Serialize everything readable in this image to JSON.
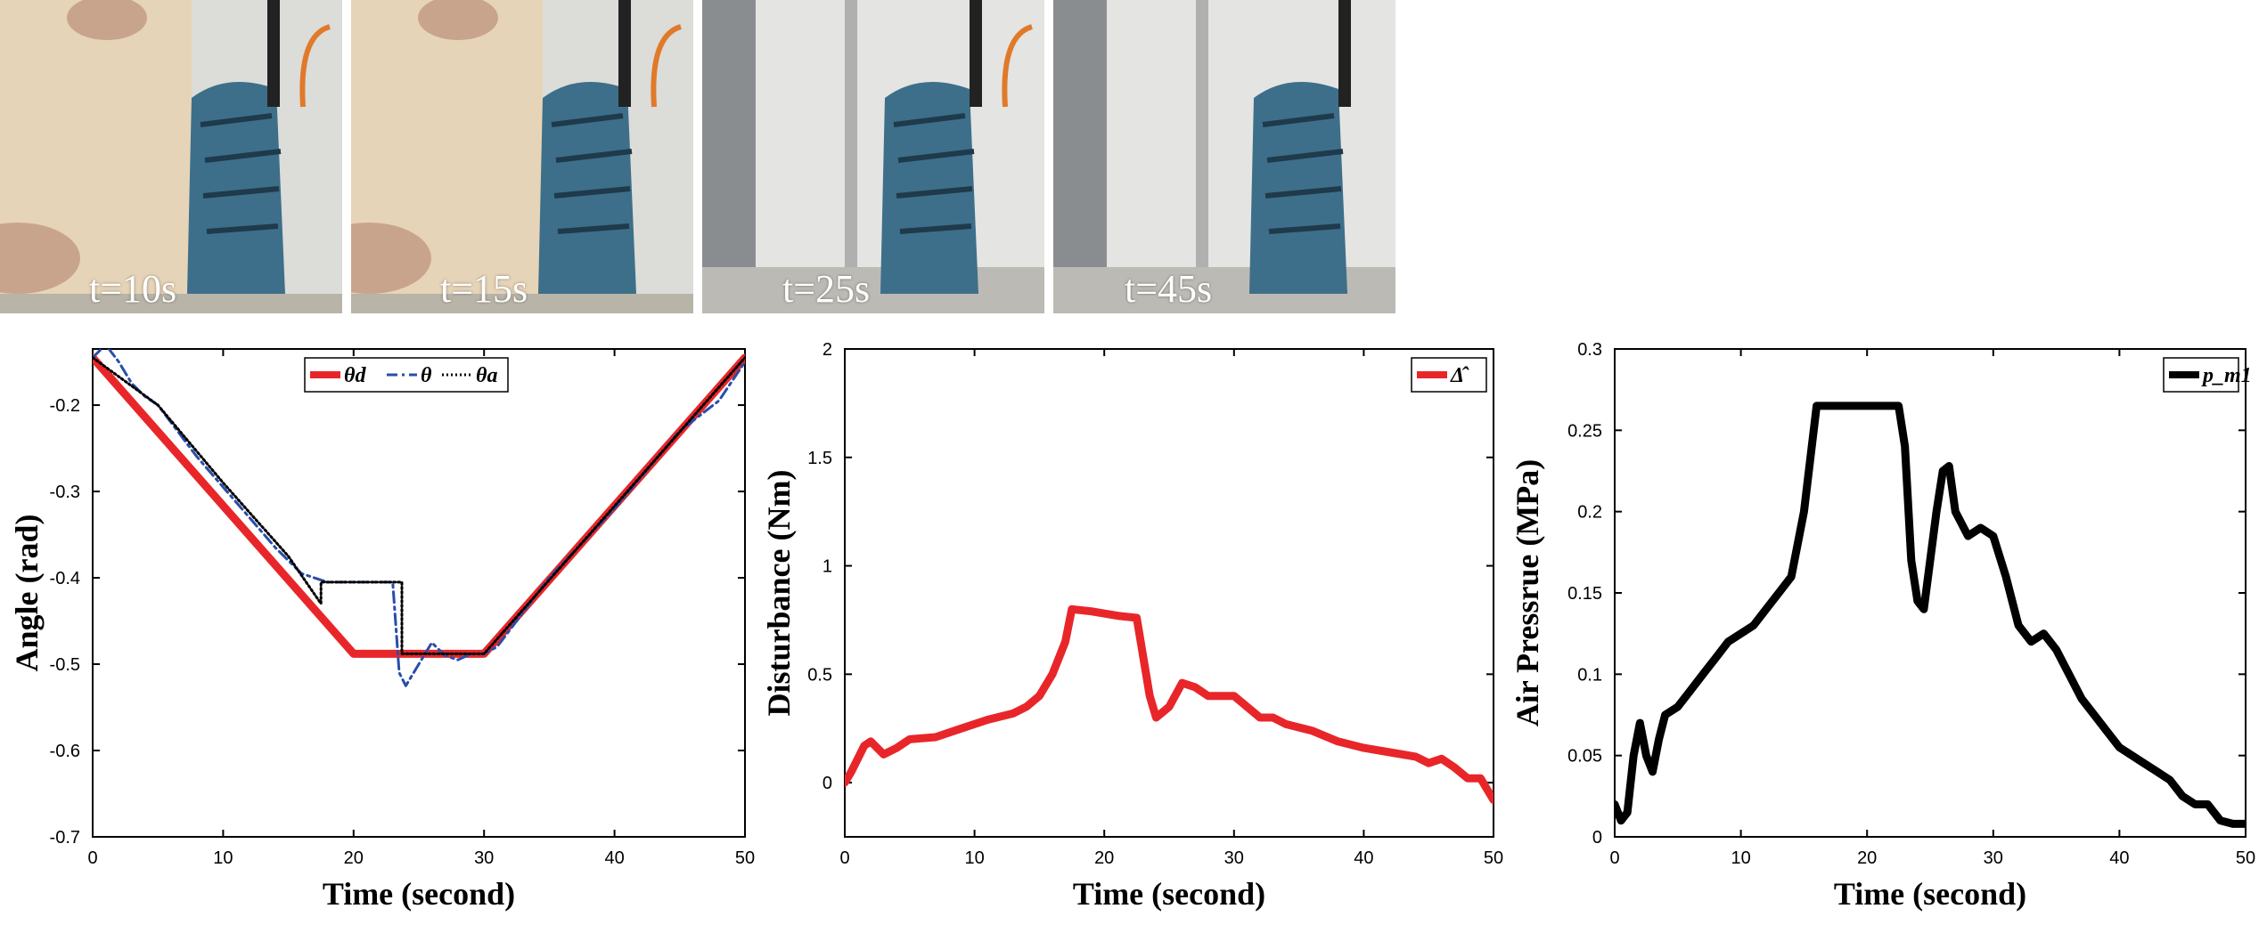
{
  "photos": [
    {
      "caption": "t=10s",
      "board": true
    },
    {
      "caption": "t=15s",
      "board": true
    },
    {
      "caption": "t=25s",
      "board": false
    },
    {
      "caption": "t=45s",
      "board": false
    }
  ],
  "colors": {
    "red": "#e8262a",
    "blue": "#2a4da8",
    "black": "#000000"
  },
  "chart_data": [
    {
      "type": "line",
      "xlabel": "Time (second)",
      "ylabel": "Angle (rad)",
      "xlim": [
        0,
        50
      ],
      "ylim": [
        -0.7,
        -0.135
      ],
      "xticks": [
        "0",
        "10",
        "20",
        "30",
        "40",
        "50"
      ],
      "yticks": [
        "-0.2",
        "-0.3",
        "-0.4",
        "-0.5",
        "-0.6",
        "-0.7"
      ],
      "legend": "top-center",
      "series": [
        {
          "name": "θd",
          "style": "solid",
          "x": [
            0,
            20,
            30,
            50
          ],
          "y": [
            -0.145,
            -0.488,
            -0.488,
            -0.145
          ]
        },
        {
          "name": "θ",
          "style": "dashdot",
          "x": [
            0,
            1,
            2,
            3,
            4,
            5,
            8,
            12,
            14,
            15,
            16,
            18,
            20,
            22,
            23,
            23.5,
            24,
            25,
            26,
            27,
            28,
            29,
            30,
            31,
            35,
            40,
            45,
            48,
            50
          ],
          "y": [
            -0.145,
            -0.13,
            -0.15,
            -0.175,
            -0.19,
            -0.2,
            -0.26,
            -0.33,
            -0.365,
            -0.38,
            -0.395,
            -0.405,
            -0.405,
            -0.405,
            -0.405,
            -0.51,
            -0.525,
            -0.5,
            -0.475,
            -0.49,
            -0.495,
            -0.488,
            -0.488,
            -0.48,
            -0.4,
            -0.32,
            -0.23,
            -0.195,
            -0.15
          ]
        },
        {
          "name": "θa",
          "style": "dotted",
          "x": [
            0,
            5,
            10,
            15,
            17.5,
            17.5,
            23.7,
            23.7,
            30,
            40,
            50
          ],
          "y": [
            -0.145,
            -0.2,
            -0.29,
            -0.375,
            -0.43,
            -0.405,
            -0.405,
            -0.488,
            -0.488,
            -0.317,
            -0.145
          ]
        }
      ]
    },
    {
      "type": "line",
      "xlabel": "Time (second)",
      "ylabel": "Disturbance (Nm)",
      "xlim": [
        0,
        50
      ],
      "ylim": [
        -0.25,
        2
      ],
      "xticks": [
        "0",
        "10",
        "20",
        "30",
        "40",
        "50"
      ],
      "yticks": [
        "0",
        "0.5",
        "1",
        "1.5",
        "2"
      ],
      "legend": "top-right",
      "series": [
        {
          "name": "Δ̂",
          "style": "solid",
          "x": [
            0,
            0.5,
            1.5,
            2,
            3,
            4,
            5,
            7,
            9,
            11,
            13,
            14,
            15,
            16,
            17,
            17.5,
            19,
            21,
            22.5,
            23.5,
            24,
            25,
            26,
            27,
            28,
            30,
            32,
            33,
            34,
            36,
            38,
            40,
            42,
            44,
            45,
            46,
            47,
            48,
            49,
            50
          ],
          "y": [
            0,
            0.05,
            0.17,
            0.19,
            0.13,
            0.16,
            0.2,
            0.21,
            0.25,
            0.29,
            0.32,
            0.35,
            0.4,
            0.5,
            0.65,
            0.8,
            0.79,
            0.77,
            0.76,
            0.4,
            0.3,
            0.35,
            0.46,
            0.44,
            0.4,
            0.4,
            0.3,
            0.3,
            0.27,
            0.24,
            0.19,
            0.16,
            0.14,
            0.12,
            0.09,
            0.11,
            0.07,
            0.02,
            0.02,
            -0.08
          ]
        }
      ]
    },
    {
      "type": "line",
      "xlabel": "Time (second)",
      "ylabel": "Air Pressrue (MPa)",
      "xlim": [
        0,
        50
      ],
      "ylim": [
        0,
        0.3
      ],
      "xticks": [
        "0",
        "10",
        "20",
        "30",
        "40",
        "50"
      ],
      "yticks": [
        "0",
        "0.05",
        "0.1",
        "0.15",
        "0.2",
        "0.25",
        "0.3"
      ],
      "legend": "top-right",
      "series": [
        {
          "name": "p_m1",
          "style": "solid",
          "x": [
            0,
            0.5,
            1,
            1.5,
            2,
            2.5,
            3,
            3.5,
            4,
            5,
            6,
            7,
            8,
            9,
            10,
            11,
            12,
            13,
            14,
            15,
            16,
            17,
            18,
            19,
            20,
            21,
            22,
            22.5,
            23,
            23.5,
            24,
            24.5,
            25,
            25.5,
            26,
            26.5,
            27,
            28,
            29,
            30,
            31,
            32,
            33,
            34,
            35,
            36,
            37,
            38,
            39,
            40,
            41,
            42,
            43,
            44,
            45,
            46,
            47,
            48,
            49,
            50
          ],
          "y": [
            0.02,
            0.01,
            0.015,
            0.05,
            0.07,
            0.05,
            0.04,
            0.06,
            0.075,
            0.08,
            0.09,
            0.1,
            0.11,
            0.12,
            0.125,
            0.13,
            0.14,
            0.15,
            0.16,
            0.2,
            0.265,
            0.265,
            0.265,
            0.265,
            0.265,
            0.265,
            0.265,
            0.265,
            0.24,
            0.17,
            0.145,
            0.14,
            0.17,
            0.2,
            0.225,
            0.228,
            0.2,
            0.185,
            0.19,
            0.185,
            0.16,
            0.13,
            0.12,
            0.125,
            0.115,
            0.1,
            0.085,
            0.075,
            0.065,
            0.055,
            0.05,
            0.045,
            0.04,
            0.035,
            0.025,
            0.02,
            0.02,
            0.01,
            0.008,
            0.008
          ]
        }
      ]
    }
  ]
}
